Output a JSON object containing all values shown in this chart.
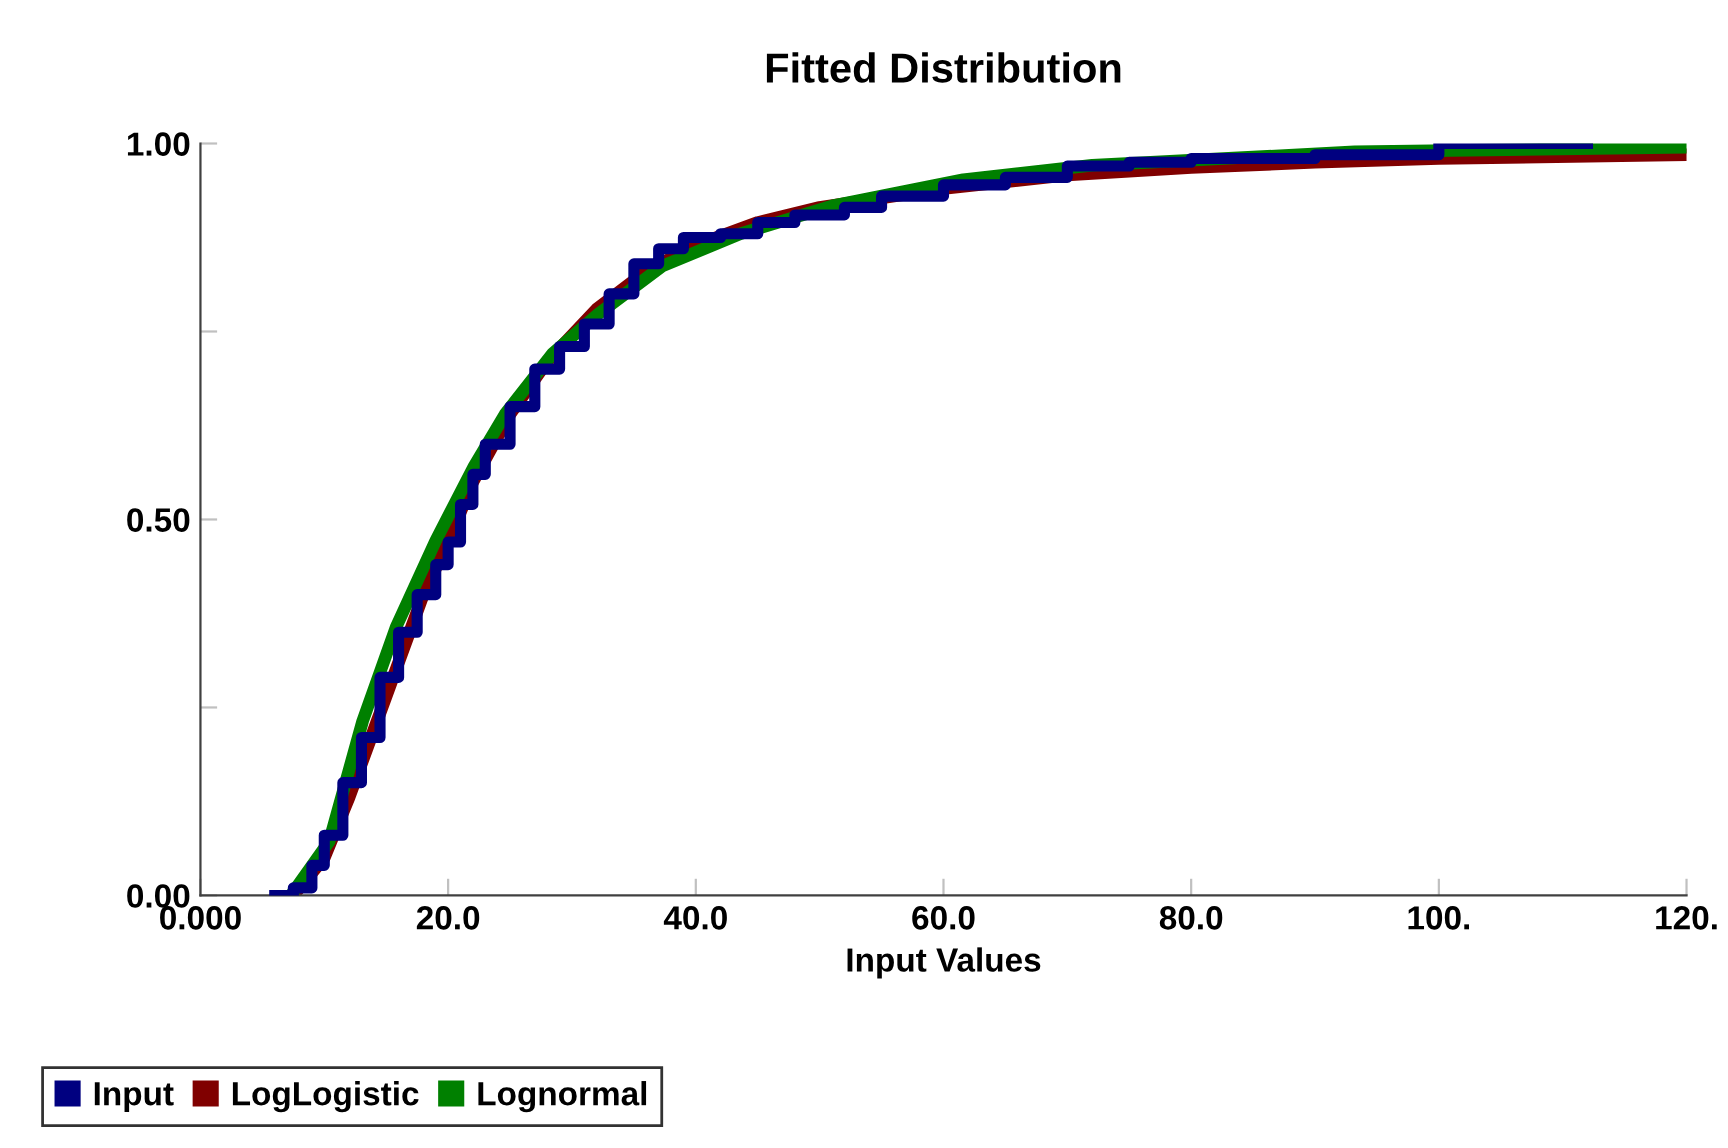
{
  "chart_data": {
    "type": "step",
    "title": "Fitted Distribution",
    "xlabel": "Input Values",
    "xlim": [
      0,
      120
    ],
    "ylim": [
      0,
      1
    ],
    "xticks": [
      {
        "value": 0,
        "label": "0.000"
      },
      {
        "value": 20,
        "label": "20.0"
      },
      {
        "value": 40,
        "label": "40.0"
      },
      {
        "value": 60,
        "label": "60.0"
      },
      {
        "value": 80,
        "label": "80.0"
      },
      {
        "value": 100,
        "label": "100."
      },
      {
        "value": 120,
        "label": "120."
      }
    ],
    "yticks": [
      {
        "value": 0,
        "label": "0.00"
      },
      {
        "value": 0.25,
        "label": null
      },
      {
        "value": 0.5,
        "label": "0.50"
      },
      {
        "value": 0.75,
        "label": null
      },
      {
        "value": 1,
        "label": "1.00"
      }
    ],
    "grid": false,
    "legend": "bottom left",
    "marker": "none",
    "line_style": "solid",
    "series": [
      {
        "name": "Input",
        "color": "#000080",
        "x": [
          6,
          7.5,
          9,
          10,
          11.5,
          13,
          14.5,
          16,
          17.5,
          19,
          20,
          21,
          22,
          23,
          25,
          27,
          29,
          31,
          33,
          35,
          37,
          39,
          42,
          45,
          48,
          52,
          55,
          60,
          65,
          70,
          75,
          80,
          90,
          100,
          112
        ],
        "values": [
          0,
          0.01,
          0.04,
          0.08,
          0.15,
          0.21,
          0.29,
          0.35,
          0.4,
          0.44,
          0.47,
          0.52,
          0.56,
          0.6,
          0.65,
          0.7,
          0.73,
          0.76,
          0.8,
          0.84,
          0.86,
          0.875,
          0.88,
          0.895,
          0.905,
          0.915,
          0.93,
          0.945,
          0.955,
          0.97,
          0.975,
          0.98,
          0.985,
          1,
          1
        ]
      },
      {
        "name": "LogLogistic",
        "color": "#800000",
        "type": "line",
        "x": [
          7.5,
          10,
          12,
          14,
          16,
          18,
          20,
          22,
          25,
          28,
          32,
          36,
          40,
          45,
          50,
          60,
          70,
          80,
          90,
          100,
          120
        ],
        "values": [
          0,
          0.05,
          0.13,
          0.22,
          0.31,
          0.4,
          0.47,
          0.55,
          0.64,
          0.71,
          0.78,
          0.83,
          0.865,
          0.895,
          0.915,
          0.94,
          0.958,
          0.968,
          0.975,
          0.98,
          0.985
        ]
      },
      {
        "name": "Lognormal",
        "color": "#008000",
        "type": "line",
        "x": [
          7.3,
          10.4,
          13.1,
          15.8,
          19,
          22.1,
          24.6,
          28.4,
          32.1,
          37.3,
          43.6,
          51,
          61.6,
          72,
          93.2,
          120
        ],
        "values": [
          0,
          0.072,
          0.232,
          0.357,
          0.472,
          0.571,
          0.64,
          0.72,
          0.773,
          0.837,
          0.88,
          0.917,
          0.952,
          0.971,
          0.989,
          0.995
        ]
      }
    ]
  }
}
